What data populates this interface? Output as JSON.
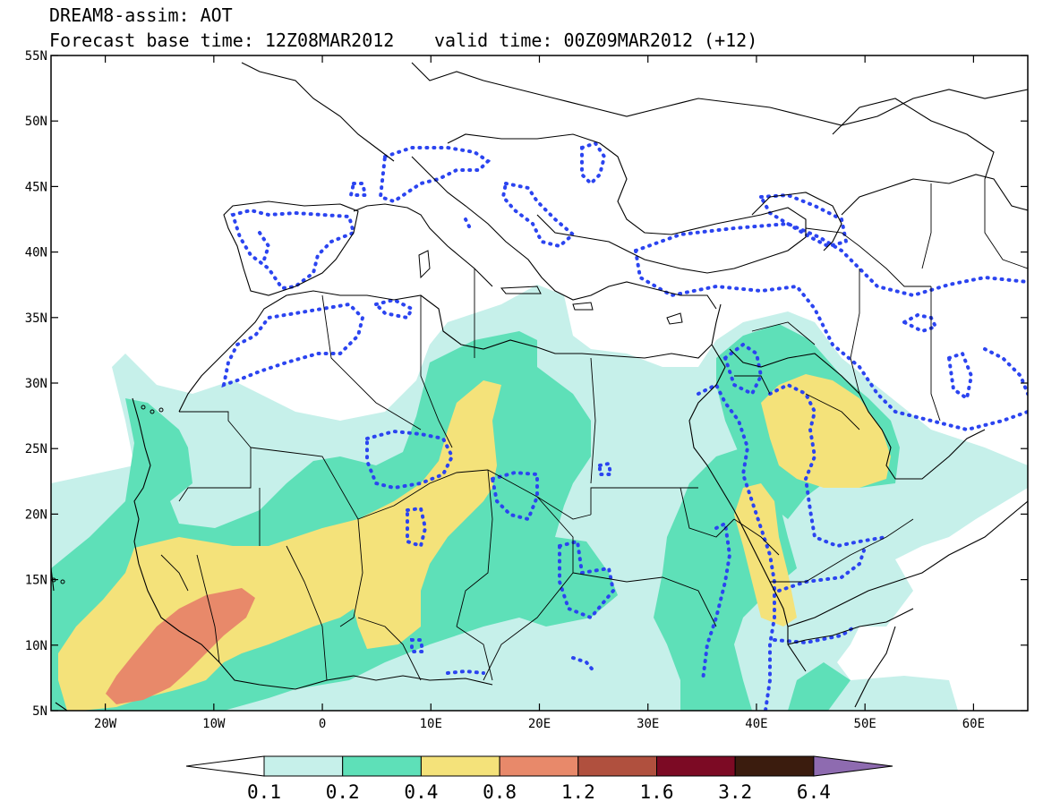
{
  "header": {
    "model": "DREAM8-assim: AOT",
    "base_time": "Forecast base time: 12Z08MAR2012",
    "valid_time": "valid time: 00Z09MAR2012 (+12)"
  },
  "map": {
    "lon_range": [
      -25,
      65
    ],
    "lat_range": [
      5,
      55
    ],
    "lat_ticks": [
      {
        "value": 55,
        "label": "55N"
      },
      {
        "value": 50,
        "label": "50N"
      },
      {
        "value": 45,
        "label": "45N"
      },
      {
        "value": 40,
        "label": "40N"
      },
      {
        "value": 35,
        "label": "35N"
      },
      {
        "value": 30,
        "label": "30N"
      },
      {
        "value": 25,
        "label": "25N"
      },
      {
        "value": 20,
        "label": "20N"
      },
      {
        "value": 15,
        "label": "15N"
      },
      {
        "value": 10,
        "label": "10N"
      },
      {
        "value": 5,
        "label": "5N"
      }
    ],
    "lon_ticks": [
      {
        "value": -20,
        "label": "20W"
      },
      {
        "value": -10,
        "label": "10W"
      },
      {
        "value": 0,
        "label": "0"
      },
      {
        "value": 10,
        "label": "10E"
      },
      {
        "value": 20,
        "label": "20E"
      },
      {
        "value": 30,
        "label": "30E"
      },
      {
        "value": 40,
        "label": "40E"
      },
      {
        "value": 50,
        "label": "50E"
      },
      {
        "value": 60,
        "label": "60E"
      }
    ],
    "contour_color": "#2b44f0"
  },
  "colorbar": {
    "under_color": "#ffffff",
    "over_color": "#8e6bb0",
    "bins": [
      {
        "color": "#c6f0ea"
      },
      {
        "color": "#5ee0b8"
      },
      {
        "color": "#f4e27a"
      },
      {
        "color": "#e8896a"
      },
      {
        "color": "#b0503e"
      },
      {
        "color": "#7c0a24"
      },
      {
        "color": "#3b1c0e"
      }
    ],
    "labels": [
      "0.1",
      "0.2",
      "0.4",
      "0.8",
      "1.2",
      "1.6",
      "3.2",
      "6.4"
    ]
  }
}
